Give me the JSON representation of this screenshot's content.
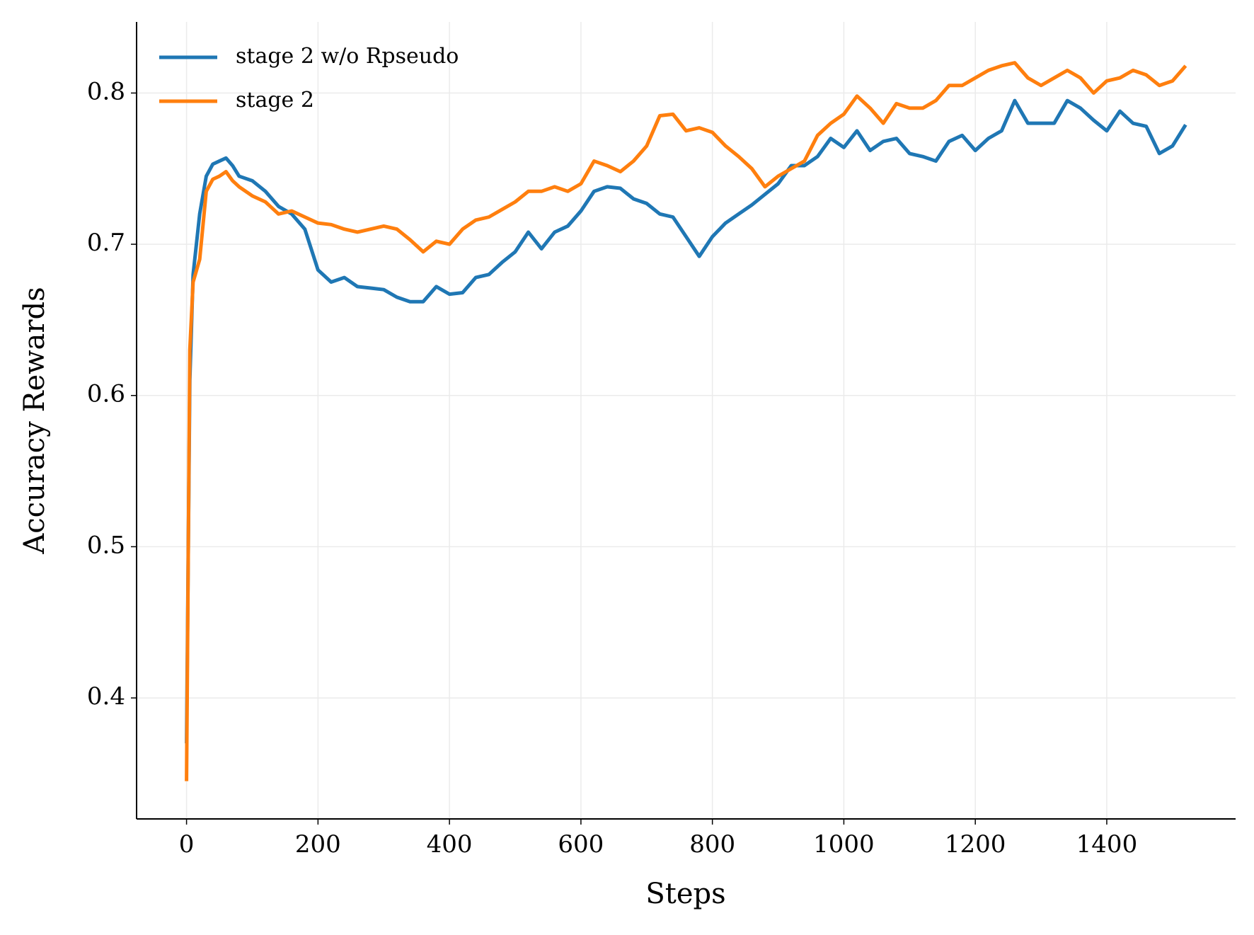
{
  "chart_data": {
    "type": "line",
    "xlabel": "Steps",
    "ylabel": "Accuracy Rewards",
    "x": [
      0,
      5,
      10,
      20,
      30,
      40,
      50,
      60,
      70,
      80,
      100,
      120,
      140,
      160,
      180,
      200,
      220,
      240,
      260,
      280,
      300,
      320,
      340,
      360,
      380,
      400,
      420,
      440,
      460,
      480,
      500,
      520,
      540,
      560,
      580,
      600,
      620,
      640,
      660,
      680,
      700,
      720,
      740,
      760,
      780,
      800,
      820,
      840,
      860,
      880,
      900,
      920,
      940,
      960,
      980,
      1000,
      1020,
      1040,
      1060,
      1080,
      1100,
      1120,
      1140,
      1160,
      1180,
      1200,
      1220,
      1240,
      1260,
      1280,
      1300,
      1320,
      1340,
      1360,
      1380,
      1400,
      1420,
      1440,
      1460,
      1480,
      1500,
      1520
    ],
    "series": [
      {
        "name": "stage 2 w/o Rpseudo",
        "color": "#1f77b4",
        "values": [
          0.37,
          0.61,
          0.68,
          0.72,
          0.745,
          0.753,
          0.755,
          0.757,
          0.752,
          0.745,
          0.742,
          0.735,
          0.725,
          0.72,
          0.71,
          0.683,
          0.675,
          0.678,
          0.672,
          0.671,
          0.67,
          0.665,
          0.662,
          0.662,
          0.672,
          0.667,
          0.668,
          0.678,
          0.68,
          0.688,
          0.695,
          0.708,
          0.697,
          0.708,
          0.712,
          0.722,
          0.735,
          0.738,
          0.737,
          0.73,
          0.727,
          0.72,
          0.718,
          0.705,
          0.692,
          0.705,
          0.714,
          0.72,
          0.726,
          0.733,
          0.74,
          0.752,
          0.752,
          0.758,
          0.77,
          0.764,
          0.775,
          0.762,
          0.768,
          0.77,
          0.76,
          0.758,
          0.755,
          0.768,
          0.772,
          0.762,
          0.77,
          0.775,
          0.795,
          0.78,
          0.78,
          0.78,
          0.795,
          0.79,
          0.782,
          0.775,
          0.788,
          0.78,
          0.778,
          0.76,
          0.765,
          0.779
        ]
      },
      {
        "name": "stage 2",
        "color": "#ff7f0e",
        "values": [
          0.345,
          0.63,
          0.675,
          0.69,
          0.735,
          0.743,
          0.745,
          0.748,
          0.742,
          0.738,
          0.732,
          0.728,
          0.72,
          0.722,
          0.718,
          0.714,
          0.713,
          0.71,
          0.708,
          0.71,
          0.712,
          0.71,
          0.703,
          0.695,
          0.702,
          0.7,
          0.71,
          0.716,
          0.718,
          0.723,
          0.728,
          0.735,
          0.735,
          0.738,
          0.735,
          0.74,
          0.755,
          0.752,
          0.748,
          0.755,
          0.765,
          0.785,
          0.786,
          0.775,
          0.777,
          0.774,
          0.765,
          0.758,
          0.75,
          0.738,
          0.745,
          0.75,
          0.755,
          0.772,
          0.78,
          0.786,
          0.798,
          0.79,
          0.78,
          0.793,
          0.79,
          0.79,
          0.795,
          0.805,
          0.805,
          0.81,
          0.815,
          0.818,
          0.82,
          0.81,
          0.805,
          0.81,
          0.815,
          0.81,
          0.8,
          0.808,
          0.81,
          0.815,
          0.812,
          0.805,
          0.808,
          0.818
        ]
      }
    ],
    "xlim": [
      -76,
      1596
    ],
    "ylim": [
      0.32,
      0.847
    ],
    "xticks": [
      0,
      200,
      400,
      600,
      800,
      1000,
      1200,
      1400
    ],
    "yticks": [
      0.4,
      0.5,
      0.6,
      0.7,
      0.8
    ],
    "grid": true,
    "legend": "upper left"
  }
}
